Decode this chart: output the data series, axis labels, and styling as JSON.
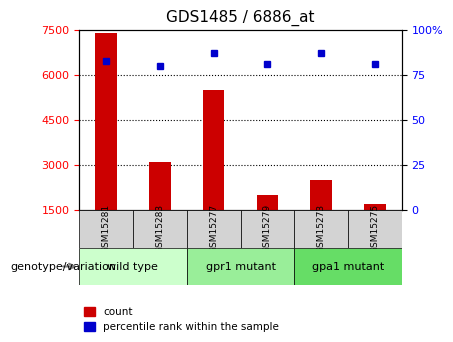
{
  "title": "GDS1485 / 6886_at",
  "samples": [
    "GSM15281",
    "GSM15283",
    "GSM15277",
    "GSM15279",
    "GSM15273",
    "GSM15275"
  ],
  "counts": [
    7400,
    3100,
    5500,
    2000,
    2500,
    1700
  ],
  "percentile_ranks": [
    83,
    80,
    87,
    81,
    87,
    81
  ],
  "bar_color": "#cc0000",
  "dot_color": "#0000cc",
  "ylim_left": [
    1500,
    7500
  ],
  "ylim_right": [
    0,
    100
  ],
  "yticks_left": [
    1500,
    3000,
    4500,
    6000,
    7500
  ],
  "yticks_right": [
    0,
    25,
    50,
    75,
    100
  ],
  "grid_values": [
    3000,
    4500,
    6000
  ],
  "bar_width": 0.4,
  "sample_bg": "#d3d3d3",
  "group_configs": [
    {
      "start": 0,
      "end": 1,
      "label": "wild type",
      "color": "#ccffcc"
    },
    {
      "start": 2,
      "end": 3,
      "label": "gpr1 mutant",
      "color": "#99ee99"
    },
    {
      "start": 4,
      "end": 5,
      "label": "gpa1 mutant",
      "color": "#66dd66"
    }
  ],
  "legend_labels": [
    "count",
    "percentile rank within the sample"
  ],
  "genotype_label": "genotype/variation"
}
